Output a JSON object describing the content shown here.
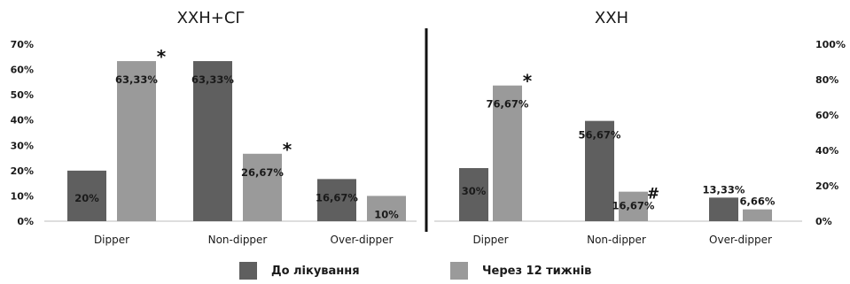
{
  "chart_data": [
    {
      "type": "bar",
      "title": "ХХН+СГ",
      "categories": [
        "Dipper",
        "Non-dipper",
        "Over-dipper"
      ],
      "series": [
        {
          "name": "До лікування",
          "values": [
            20,
            63.33,
            16.67
          ],
          "labels": [
            "20%",
            "63,33%",
            "16,67%"
          ],
          "markers": [
            "",
            "",
            ""
          ]
        },
        {
          "name": "Через 12 тижнів",
          "values": [
            63.33,
            26.67,
            10
          ],
          "labels": [
            "63,33%",
            "26,67%",
            "10%"
          ],
          "markers": [
            "*",
            "*",
            ""
          ]
        }
      ],
      "ylim": [
        0,
        70
      ],
      "yticks": [
        "0%",
        "10%",
        "20%",
        "30%",
        "40%",
        "50%",
        "60%",
        "70%"
      ],
      "y_axis": "left",
      "grid": false
    },
    {
      "type": "bar",
      "title": "ХХН",
      "categories": [
        "Dipper",
        "Non-dipper",
        "Over-dipper"
      ],
      "series": [
        {
          "name": "До лікування",
          "values": [
            30,
            56.67,
            13.33
          ],
          "labels": [
            "30%",
            "56,67%",
            "13,33%"
          ],
          "markers": [
            "",
            "",
            ""
          ]
        },
        {
          "name": "Через 12 тижнів",
          "values": [
            76.67,
            16.67,
            6.66
          ],
          "labels": [
            "76,67%",
            "16,67%",
            "6,66%"
          ],
          "markers": [
            "*",
            "#",
            ""
          ]
        }
      ],
      "ylim": [
        0,
        100
      ],
      "yticks": [
        "0%",
        "20%",
        "40%",
        "60%",
        "80%",
        "100%"
      ],
      "y_axis": "right",
      "grid": false
    }
  ],
  "legend": {
    "position": "bottom",
    "items": [
      {
        "label": "До лікування",
        "color": "#5f5f5f"
      },
      {
        "label": "Через 12 тижнів",
        "color": "#9a9a9a"
      }
    ]
  },
  "colors": {
    "before": "#5f5f5f",
    "after": "#9a9a9a",
    "text": "#1a1a1a"
  }
}
